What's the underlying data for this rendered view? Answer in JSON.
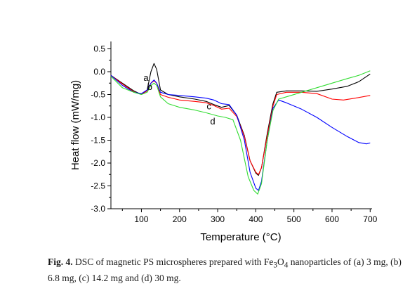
{
  "chart_data": {
    "type": "line",
    "xlabel": "Temperature (°C)",
    "ylabel": "Heat flow (mW/mg)",
    "xlim": [
      20,
      705
    ],
    "ylim": [
      -3.0,
      0.6
    ],
    "x_ticks": [
      100,
      200,
      300,
      400,
      500,
      600,
      700
    ],
    "y_ticks": [
      0.5,
      0.0,
      -0.5,
      -1.0,
      -1.5,
      -2.0,
      -2.5,
      -3.0
    ],
    "x_tick_labels": [
      "100",
      "200",
      "300",
      "400",
      "500",
      "600",
      "700"
    ],
    "y_tick_labels": [
      "0.5",
      "0.0",
      "-0.5",
      "-1.0",
      "-1.5",
      "-2.0",
      "-2.5",
      "-3.0"
    ],
    "grid": false,
    "series": [
      {
        "name": "a",
        "color": "#000000",
        "points": [
          [
            20,
            -0.08
          ],
          [
            50,
            -0.25
          ],
          [
            80,
            -0.42
          ],
          [
            100,
            -0.5
          ],
          [
            115,
            -0.4
          ],
          [
            125,
            0.0
          ],
          [
            133,
            0.18
          ],
          [
            140,
            0.05
          ],
          [
            150,
            -0.4
          ],
          [
            170,
            -0.5
          ],
          [
            200,
            -0.55
          ],
          [
            240,
            -0.6
          ],
          [
            270,
            -0.65
          ],
          [
            290,
            -0.72
          ],
          [
            310,
            -0.78
          ],
          [
            330,
            -0.74
          ],
          [
            350,
            -0.95
          ],
          [
            370,
            -1.4
          ],
          [
            385,
            -1.95
          ],
          [
            400,
            -2.22
          ],
          [
            407,
            -2.27
          ],
          [
            415,
            -2.1
          ],
          [
            430,
            -1.35
          ],
          [
            445,
            -0.7
          ],
          [
            455,
            -0.45
          ],
          [
            480,
            -0.42
          ],
          [
            520,
            -0.42
          ],
          [
            560,
            -0.43
          ],
          [
            600,
            -0.38
          ],
          [
            640,
            -0.32
          ],
          [
            670,
            -0.22
          ],
          [
            700,
            -0.05
          ]
        ]
      },
      {
        "name": "b",
        "color": "#ff0000",
        "points": [
          [
            20,
            -0.08
          ],
          [
            50,
            -0.27
          ],
          [
            80,
            -0.44
          ],
          [
            100,
            -0.5
          ],
          [
            115,
            -0.42
          ],
          [
            125,
            -0.25
          ],
          [
            133,
            -0.2
          ],
          [
            140,
            -0.25
          ],
          [
            150,
            -0.5
          ],
          [
            170,
            -0.56
          ],
          [
            200,
            -0.62
          ],
          [
            240,
            -0.65
          ],
          [
            270,
            -0.68
          ],
          [
            290,
            -0.74
          ],
          [
            310,
            -0.82
          ],
          [
            330,
            -0.8
          ],
          [
            350,
            -0.98
          ],
          [
            370,
            -1.42
          ],
          [
            385,
            -1.95
          ],
          [
            400,
            -2.2
          ],
          [
            407,
            -2.25
          ],
          [
            415,
            -2.1
          ],
          [
            430,
            -1.4
          ],
          [
            445,
            -0.75
          ],
          [
            455,
            -0.5
          ],
          [
            480,
            -0.45
          ],
          [
            520,
            -0.45
          ],
          [
            560,
            -0.48
          ],
          [
            600,
            -0.6
          ],
          [
            630,
            -0.62
          ],
          [
            660,
            -0.58
          ],
          [
            700,
            -0.52
          ]
        ]
      },
      {
        "name": "c",
        "color": "#0000ff",
        "points": [
          [
            20,
            -0.08
          ],
          [
            50,
            -0.3
          ],
          [
            80,
            -0.45
          ],
          [
            100,
            -0.48
          ],
          [
            115,
            -0.4
          ],
          [
            125,
            -0.25
          ],
          [
            133,
            -0.18
          ],
          [
            140,
            -0.25
          ],
          [
            150,
            -0.45
          ],
          [
            170,
            -0.5
          ],
          [
            200,
            -0.52
          ],
          [
            240,
            -0.55
          ],
          [
            270,
            -0.58
          ],
          [
            290,
            -0.62
          ],
          [
            310,
            -0.7
          ],
          [
            330,
            -0.72
          ],
          [
            350,
            -0.95
          ],
          [
            370,
            -1.5
          ],
          [
            385,
            -2.2
          ],
          [
            400,
            -2.55
          ],
          [
            407,
            -2.6
          ],
          [
            415,
            -2.4
          ],
          [
            430,
            -1.5
          ],
          [
            445,
            -0.8
          ],
          [
            460,
            -0.62
          ],
          [
            480,
            -0.68
          ],
          [
            520,
            -0.82
          ],
          [
            560,
            -1.0
          ],
          [
            600,
            -1.22
          ],
          [
            640,
            -1.42
          ],
          [
            670,
            -1.55
          ],
          [
            690,
            -1.58
          ],
          [
            700,
            -1.56
          ]
        ]
      },
      {
        "name": "d",
        "color": "#33dd33",
        "points": [
          [
            20,
            -0.1
          ],
          [
            50,
            -0.35
          ],
          [
            80,
            -0.45
          ],
          [
            100,
            -0.5
          ],
          [
            115,
            -0.45
          ],
          [
            125,
            -0.3
          ],
          [
            133,
            -0.25
          ],
          [
            140,
            -0.3
          ],
          [
            150,
            -0.55
          ],
          [
            170,
            -0.7
          ],
          [
            200,
            -0.78
          ],
          [
            240,
            -0.84
          ],
          [
            270,
            -0.9
          ],
          [
            300,
            -0.97
          ],
          [
            320,
            -1.0
          ],
          [
            340,
            -1.05
          ],
          [
            360,
            -1.5
          ],
          [
            380,
            -2.3
          ],
          [
            395,
            -2.6
          ],
          [
            405,
            -2.68
          ],
          [
            415,
            -2.45
          ],
          [
            430,
            -1.5
          ],
          [
            445,
            -0.85
          ],
          [
            460,
            -0.6
          ],
          [
            480,
            -0.55
          ],
          [
            520,
            -0.45
          ],
          [
            560,
            -0.35
          ],
          [
            600,
            -0.25
          ],
          [
            640,
            -0.15
          ],
          [
            670,
            -0.08
          ],
          [
            700,
            0.02
          ]
        ]
      }
    ],
    "annotations": [
      {
        "text": "a",
        "x": 112,
        "y": -0.2
      },
      {
        "text": "b",
        "x": 122,
        "y": -0.4
      },
      {
        "text": "c",
        "x": 277,
        "y": -0.82
      },
      {
        "text": "d",
        "x": 287,
        "y": -1.15
      }
    ]
  },
  "caption": {
    "label": "Fig. 4.",
    "text_part1": " DSC of magnetic PS microspheres prepared with Fe",
    "sub1": "3",
    "text_part2": "O",
    "sub2": "4",
    "text_part3": " nanoparticles of (a) 3 mg, (b) 6.8 mg, (c) 14.2 mg and (d) 30 mg."
  }
}
